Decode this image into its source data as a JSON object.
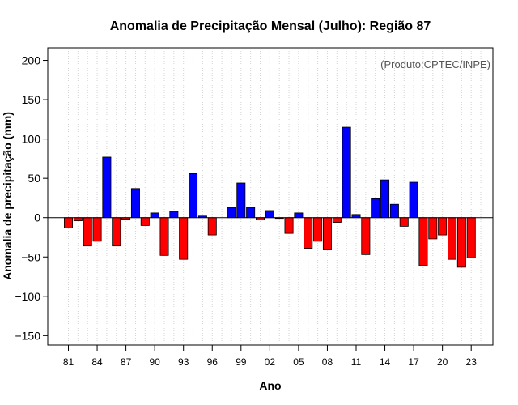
{
  "chart_data": {
    "type": "bar",
    "title": "Anomalia de Precipitação Mensal (Julho): Região 87",
    "xlabel": "Ano",
    "ylabel": "Anomalia de precipitação (mm)",
    "note": "(Produto:CPTEC/INPE)",
    "ylim": [
      -162,
      216
    ],
    "yticks": [
      -150,
      -100,
      -50,
      0,
      50,
      100,
      150,
      200
    ],
    "years": [
      1981,
      1982,
      1983,
      1984,
      1985,
      1986,
      1987,
      1988,
      1989,
      1990,
      1991,
      1992,
      1993,
      1994,
      1995,
      1996,
      1997,
      1998,
      1999,
      2000,
      2001,
      2002,
      2003,
      2004,
      2005,
      2006,
      2007,
      2008,
      2009,
      2010,
      2011,
      2012,
      2013,
      2014,
      2015,
      2016,
      2017,
      2018,
      2019,
      2020,
      2021,
      2022,
      2023,
      2024
    ],
    "values": [
      -13,
      -4,
      -36,
      -30,
      77,
      -36,
      -2,
      37,
      -10,
      6,
      -48,
      8,
      -53,
      56,
      2,
      -22,
      0,
      13,
      44,
      13,
      -3,
      9,
      -1,
      -20,
      6,
      -39,
      -30,
      -41,
      -6,
      115,
      4,
      -47,
      24,
      48,
      17,
      -11,
      45,
      -61,
      -27,
      -22,
      -53,
      -63,
      -51,
      0
    ],
    "xticks": [
      "81",
      "84",
      "87",
      "90",
      "93",
      "96",
      "99",
      "02",
      "05",
      "08",
      "11",
      "14",
      "17",
      "20",
      "23"
    ],
    "colors": {
      "positive": "#0000ff",
      "negative": "#ff0000",
      "grid": "#d3d3d3"
    },
    "grid": true
  }
}
